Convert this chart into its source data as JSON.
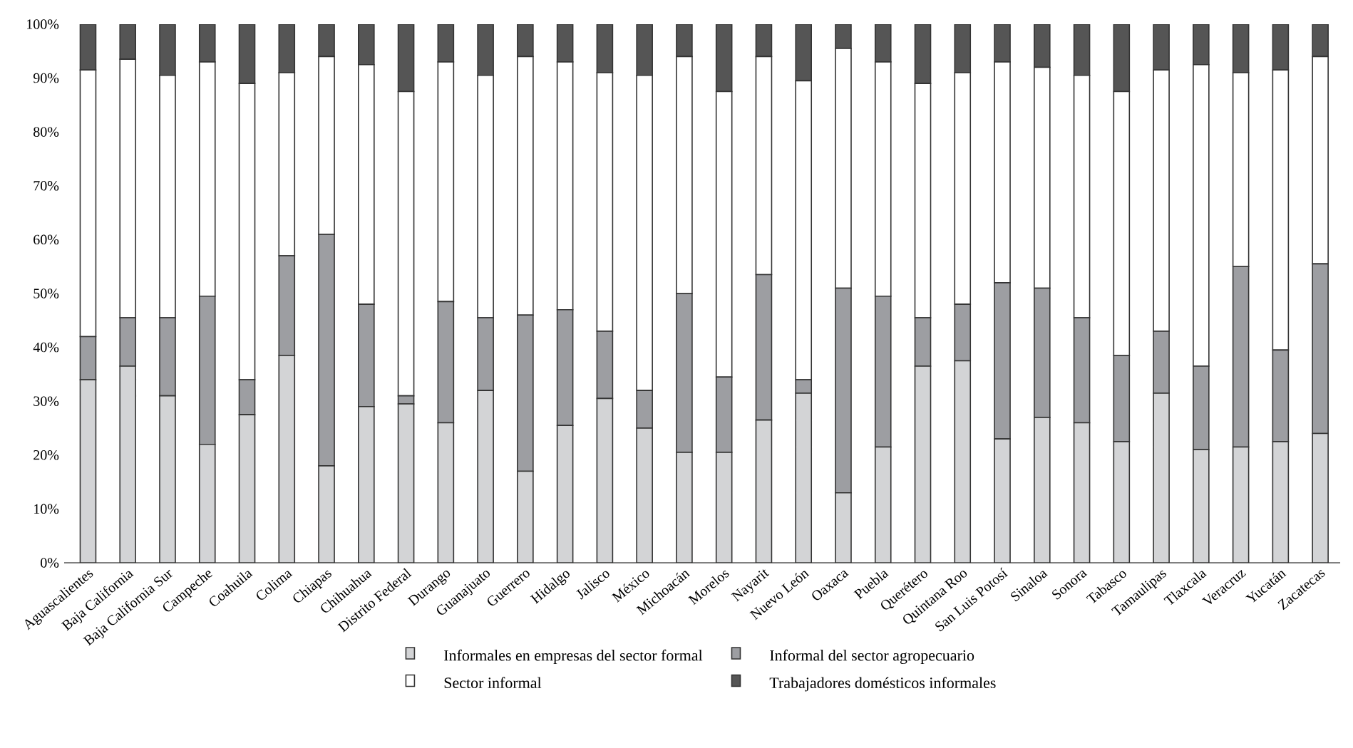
{
  "chart_data": {
    "type": "bar",
    "stacked": true,
    "legend": "bottom",
    "grid": false,
    "categories": [
      "Aguascalientes",
      "Baja California",
      "Baja California Sur",
      "Campeche",
      "Coahuila",
      "Colima",
      "Chiapas",
      "Chihuahua",
      "Distrito Federal",
      "Durango",
      "Guanajuato",
      "Guerrero",
      "Hidalgo",
      "Jalisco",
      "México",
      "Michoacán",
      "Morelos",
      "Nayarit",
      "Nuevo León",
      "Oaxaca",
      "Puebla",
      "Querétero",
      "Quintana Roo",
      "San Luis Potosí",
      "Sinaloa",
      "Sonora",
      "Tabasco",
      "Tamaulipas",
      "Tlaxcala",
      "Veracruz",
      "Yucatán",
      "Zacatecas"
    ],
    "ylim": [
      0,
      100
    ],
    "yticks": [
      {
        "value": 0,
        "label": "0%"
      },
      {
        "value": 10,
        "label": "10%"
      },
      {
        "value": 20,
        "label": "20%"
      },
      {
        "value": 30,
        "label": "30%"
      },
      {
        "value": 40,
        "label": "40%"
      },
      {
        "value": 50,
        "label": "50%"
      },
      {
        "value": 60,
        "label": "60%"
      },
      {
        "value": 70,
        "label": "70%"
      },
      {
        "value": 80,
        "label": "80%"
      },
      {
        "value": 90,
        "label": "90%"
      },
      {
        "value": 100,
        "label": "100%"
      }
    ],
    "series": [
      {
        "name": "Informales en empresas del sector formal",
        "color": "#d3d4d6",
        "values": [
          34,
          36.5,
          31,
          22,
          27.5,
          38.5,
          18,
          29,
          29.5,
          26,
          32,
          17,
          25.5,
          30.5,
          25,
          20.5,
          20.5,
          26.5,
          31.5,
          13,
          21.5,
          36.5,
          37.5,
          23,
          27,
          26,
          22.5,
          31.5,
          21,
          21.5,
          22.5,
          24
        ]
      },
      {
        "name": "Informal del sector agropecuario",
        "color": "#9d9ea2",
        "values": [
          8,
          9,
          14.5,
          27.5,
          6.5,
          18.5,
          43,
          19,
          1.5,
          22.5,
          13.5,
          29,
          21.5,
          12.5,
          7,
          29.5,
          14,
          27,
          2.5,
          38,
          28,
          9,
          10.5,
          29,
          24,
          19.5,
          16,
          11.5,
          15.5,
          33.5,
          17,
          31.5
        ]
      },
      {
        "name": "Sector informal",
        "color": "#ffffff",
        "values": [
          49.5,
          48,
          45,
          43.5,
          55,
          34,
          33,
          44.5,
          56.5,
          44.5,
          45,
          48,
          46,
          48,
          58.5,
          44,
          53,
          40.5,
          55.5,
          44.5,
          43.5,
          43.5,
          43,
          41,
          41,
          45,
          49,
          48.5,
          56,
          36,
          52,
          38.5
        ]
      },
      {
        "name": "Trabajadores domésticos informales",
        "color": "#555555",
        "values": [
          8.5,
          6.5,
          9.5,
          7,
          11,
          9,
          6,
          7.5,
          12.5,
          7,
          9.5,
          6,
          7,
          9,
          9.5,
          6,
          12.5,
          6,
          10.5,
          4.5,
          7,
          11,
          9,
          7,
          8,
          9.5,
          12.5,
          8.5,
          7.5,
          9,
          8.5,
          6
        ]
      }
    ]
  }
}
